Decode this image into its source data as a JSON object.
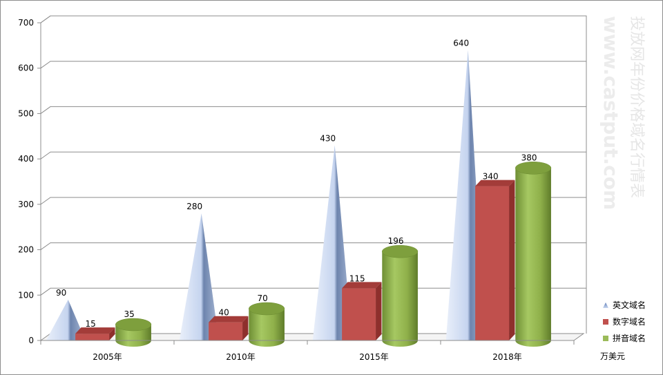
{
  "chart_data": {
    "type": "bar",
    "categories": [
      "2005年",
      "2010年",
      "2015年",
      "2018年"
    ],
    "series": [
      {
        "name": "英文域名",
        "values": [
          90,
          280,
          430,
          640
        ],
        "color": "#7f9fd4",
        "shape": "cone"
      },
      {
        "name": "数字域名",
        "values": [
          15,
          40,
          115,
          340
        ],
        "color": "#c0504d",
        "shape": "box"
      },
      {
        "name": "拼音域名",
        "values": [
          35,
          70,
          196,
          380
        ],
        "color": "#9bbb59",
        "shape": "cylinder"
      }
    ],
    "y_ticks": [
      "0",
      "100",
      "200",
      "300",
      "400",
      "500",
      "600",
      "700"
    ],
    "ylim": [
      0,
      700
    ],
    "unit_label": "万美元",
    "legend_position": "right",
    "grid": true
  },
  "watermark": {
    "title": "投放网年份价格域名行情表",
    "url": "www.castput.com"
  }
}
